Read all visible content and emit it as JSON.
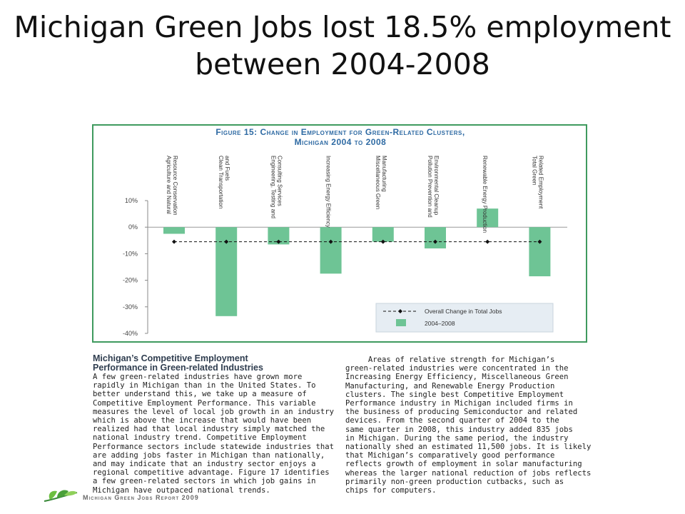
{
  "slide": {
    "title": "Michigan Green Jobs lost 18.5% employment between 2004-2008"
  },
  "figure": {
    "title_line1": "Figure 15: Change in Employment for Green-Related Clusters,",
    "title_line2": "Michigan 2004 to 2008"
  },
  "chart_data": {
    "type": "bar",
    "categories": [
      "Agriculture and Natural Resource Conservation",
      "Clean Transportation and Fuels",
      "Engineering, Testing and Consulting Services",
      "Increasing Energy Efficiency",
      "Miscellaneous Green Manufacturing",
      "Pollution Prevention and Environmental Cleanup",
      "Renewable Energy Production",
      "Total Green Related Employment"
    ],
    "series": [
      {
        "name": "2004–2008",
        "values": [
          -2.5,
          -33.5,
          -6.5,
          -17.5,
          -5.5,
          -8.0,
          7.0,
          -18.5
        ],
        "color": "#6ec495"
      },
      {
        "name": "Overall Change in Total Jobs",
        "values": [
          -5.5,
          -5.5,
          -5.5,
          -5.5,
          -5.5,
          -5.5,
          -5.5,
          -5.5
        ],
        "color": "#111111"
      }
    ],
    "yticks": [
      "10%",
      "0%",
      "-10%",
      "-20%",
      "-30%",
      "-40%"
    ],
    "ytick_values": [
      10,
      0,
      -10,
      -20,
      -30,
      -40
    ],
    "ylim": [
      -40,
      10
    ],
    "legend_position": "bottom-right"
  },
  "body": {
    "left_heading": "Michigan’s Competitive Employment\nPerformance in Green-related Industries",
    "left_text": "A few green-related industries have grown more\nrapidly in Michigan than in the United States. To\nbetter understand this, we take up a measure of\nCompetitive Employment Performance. This variable\nmeasures the level of local job growth in an industry\nwhich is above the increase that would have been\nrealized had that local industry simply matched the\nnational industry trend. Competitive Employment\nPerformance sectors include statewide industries that\nare adding jobs faster in Michigan than nationally,\nand may indicate that an industry sector enjoys a\nregional competitive advantage. Figure 17 identifies\na few green-related sectors in which job gains in\nMichigan have outpaced national trends.",
    "right_text": "     Areas of relative strength for Michigan’s\ngreen-related industries were concentrated in the\nIncreasing Energy Efficiency, Miscellaneous Green\nManufacturing, and Renewable Energy Production\nclusters. The single best Competitive Employment\nPerformance industry in Michigan included firms in\nthe business of producing Semiconductor and related\ndevices. From the second quarter of 2004 to the\nsame quarter in 2008, this industry added 835 jobs\nin Michigan. During the same period, the industry\nnationally shed an estimated 11,500 jobs. It is likely\nthat Michigan’s comparatively good performance\nreflects growth of employment in solar manufacturing\nwhereas the larger national reduction of jobs reflects\nprimarily non-green production cutbacks, such as\nchips for computers."
  },
  "footer": {
    "report_name": "Michigan Green Jobs Report 2009"
  }
}
